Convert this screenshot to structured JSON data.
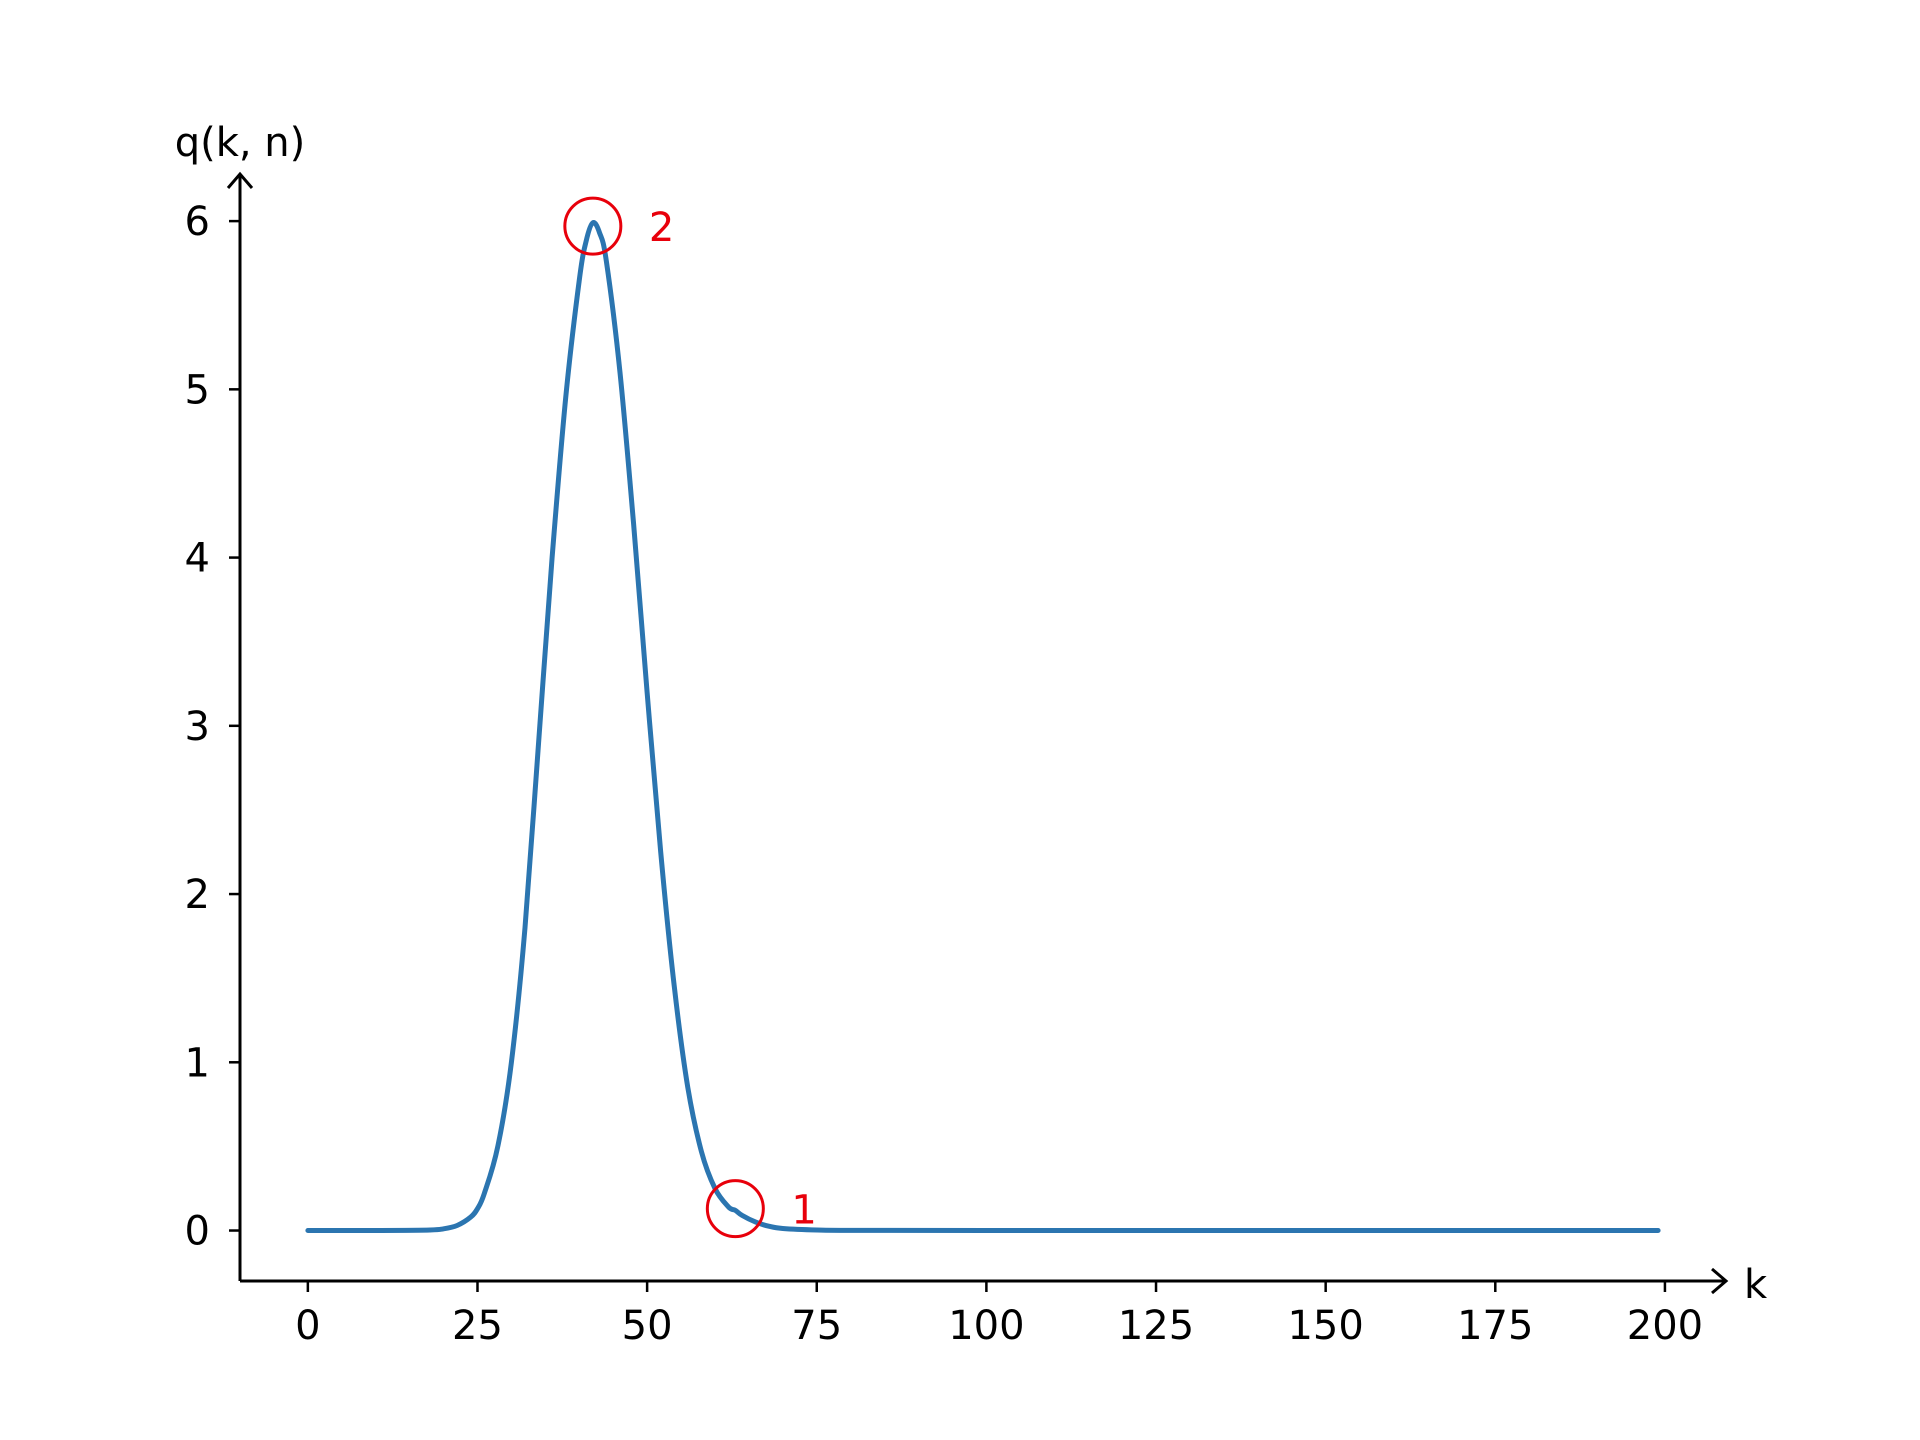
{
  "chart_data": {
    "type": "line",
    "title": "",
    "xlabel": "k",
    "ylabel": "q(k, n)",
    "xlim": [
      -10,
      209
    ],
    "ylim": [
      -0.3,
      6.28
    ],
    "x_ticks": [
      0,
      25,
      50,
      75,
      100,
      125,
      150,
      175,
      200
    ],
    "y_ticks": [
      0,
      1,
      2,
      3,
      4,
      5,
      6
    ],
    "grid": false,
    "legend": "none",
    "colors": {
      "line": "#2b75b0",
      "annotation": "#e8000b",
      "axis": "#000000"
    },
    "series": [
      {
        "values_x": [
          0,
          10,
          18,
          20,
          22,
          24,
          25,
          26,
          28,
          30,
          32,
          34,
          36,
          38,
          40,
          41,
          42,
          43,
          44,
          46,
          48,
          50,
          52,
          54,
          56,
          58,
          60,
          62,
          63,
          64,
          66,
          68,
          70,
          75,
          80,
          100,
          150,
          199
        ],
        "values_y": [
          0,
          0,
          0.003,
          0.01,
          0.03,
          0.08,
          0.13,
          0.22,
          0.5,
          1.0,
          1.8,
          2.9,
          4.0,
          4.95,
          5.65,
          5.88,
          5.99,
          5.93,
          5.76,
          5.1,
          4.2,
          3.2,
          2.25,
          1.45,
          0.85,
          0.47,
          0.25,
          0.14,
          0.12,
          0.09,
          0.05,
          0.025,
          0.012,
          0.003,
          0.001,
          0,
          0,
          0
        ]
      }
    ],
    "annotations": [
      {
        "label": "1",
        "x": 63,
        "y": 0.13
      },
      {
        "label": "2",
        "x": 42,
        "y": 5.97
      }
    ]
  }
}
